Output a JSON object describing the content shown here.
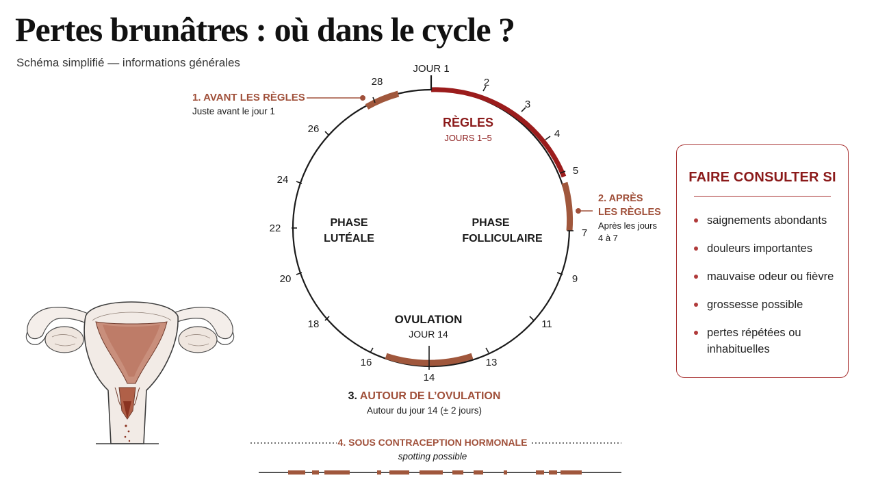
{
  "header": {
    "title": "Pertes brunâtres : où dans le cycle ?",
    "subtitle": "Schéma simplifié — informations générales"
  },
  "cycle": {
    "start_label": "JOUR 1",
    "day_labels": [
      "2",
      "3",
      "4",
      "5",
      "7",
      "9",
      "11",
      "13",
      "14",
      "16",
      "18",
      "20",
      "22",
      "24",
      "26",
      "28"
    ],
    "phases": {
      "follicular": [
        "PHASE",
        "FOLLICULAIRE"
      ],
      "luteal": [
        "PHASE",
        "LUTÉALE"
      ]
    },
    "periods": {
      "title": "RÈGLES",
      "sub": "JOURS 1–5",
      "start_day": 1,
      "end_day": 5
    },
    "ovulation": {
      "title": "OVULATION",
      "sub": "JOUR 14",
      "center_day": 14
    }
  },
  "annotations": {
    "before": {
      "number": "1.",
      "title": "AVANT LES RÈGLES",
      "sub": "Juste avant le jour 1"
    },
    "after": {
      "title_line1": "2. APRÈS",
      "title_line2": "LES RÈGLES",
      "sub_line1": "Après les jours",
      "sub_line2": "4 à 7"
    },
    "ovulation": {
      "number": "3.",
      "title": "AUTOUR DE L’OVULATION",
      "sub": "Autour du jour 14 (± 2 jours)"
    },
    "contraception": {
      "title": "4. SOUS CONTRACEPTION HORMONALE",
      "sub": "spotting possible"
    }
  },
  "consult": {
    "title": "FAIRE CONSULTER SI",
    "items": [
      [
        "saignements abondants"
      ],
      [
        "douleurs importantes"
      ],
      [
        "mauvaise odeur ou fièvre"
      ],
      [
        "grossesse possible"
      ],
      [
        "pertes répétées ou",
        "inhabituelles"
      ]
    ]
  },
  "colors": {
    "period": "#9b1c1c",
    "spotting": "#a0573c",
    "accent_text": "#8b1a1a",
    "annotation_text": "#a0503a",
    "line": "#1a1a1a"
  }
}
